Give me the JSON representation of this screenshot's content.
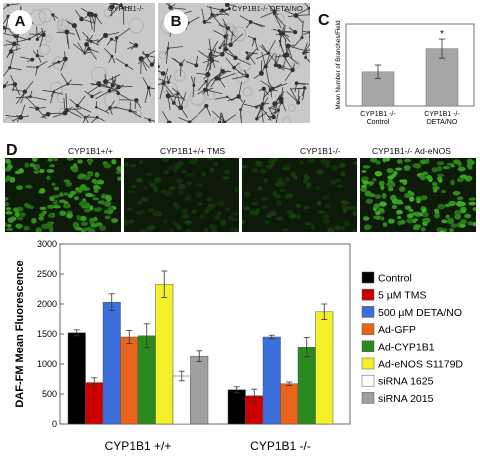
{
  "panels": {
    "a": {
      "letter": "A",
      "caption": "CYP1B1-/-"
    },
    "b": {
      "letter": "B",
      "caption": "CYP1B1-/-  DETA/NO"
    },
    "c": {
      "letter": "C"
    },
    "d": {
      "letter": "D",
      "captions": [
        "CYP1B1+/+",
        "CYP1B1+/+ TMS",
        "CYP1B1-/-",
        "CYP1B1-/- Ad-eNOS"
      ]
    }
  },
  "colors": {
    "micrograph_bg": "#c9c9c9",
    "fluor_green": "#3fae2a",
    "fluor_dark": "#0d1a0a",
    "bar_gray": "#a6a6a6"
  },
  "chart_data": [
    {
      "type": "bar",
      "ylabel": "Mean Number of Branches/Field",
      "categories": [
        "CYP1B1 -/- Control",
        "CYP1B1 -/- DETA/NO"
      ],
      "category_lines": [
        [
          "CYP1B1 -/-",
          "Control"
        ],
        [
          "CYP1B1 -/-",
          "DETA/NO"
        ]
      ],
      "values": [
        12.5,
        21
      ],
      "errors": [
        2.5,
        3.5
      ],
      "annotations": [
        "",
        "*"
      ],
      "ylim": [
        0,
        30
      ],
      "grid": false,
      "color": "#a6a6a6"
    },
    {
      "type": "bar",
      "ylabel": "DAF-FM Mean Fluorescence",
      "categories": [
        "CYP1B1 +/+",
        "CYP1B1 -/-"
      ],
      "yticks": [
        0,
        500,
        1000,
        1500,
        2000,
        2500,
        3000
      ],
      "ylim": [
        0,
        3000
      ],
      "grid": false,
      "legend_position": "right",
      "series": [
        {
          "name": "Control",
          "color": "#000000",
          "values": [
            1520,
            570
          ],
          "errors": [
            50,
            50
          ]
        },
        {
          "name": "5 µM TMS",
          "color": "#cc0000",
          "values": [
            690,
            470
          ],
          "errors": [
            80,
            110
          ]
        },
        {
          "name": "500 µM DETA/NO",
          "color": "#3c6fdc",
          "values": [
            2030,
            1450
          ],
          "errors": [
            140,
            30
          ]
        },
        {
          "name": "Ad-GFP",
          "color": "#e8641a",
          "values": [
            1450,
            670
          ],
          "errors": [
            110,
            30
          ]
        },
        {
          "name": "Ad-CYP1B1",
          "color": "#2b8a1e",
          "values": [
            1470,
            1280
          ],
          "errors": [
            200,
            160
          ]
        },
        {
          "name": "Ad-eNOS S1179D",
          "color": "#f4f02a",
          "values": [
            2330,
            1870
          ],
          "errors": [
            220,
            130
          ]
        },
        {
          "name": "siRNA 1625",
          "color": "#ffffff",
          "values": [
            800,
            null
          ],
          "errors": [
            80,
            null
          ]
        },
        {
          "name": "siRNA 2015",
          "color": "#a0a0a0",
          "values": [
            1130,
            null
          ],
          "errors": [
            90,
            null
          ]
        }
      ]
    }
  ]
}
